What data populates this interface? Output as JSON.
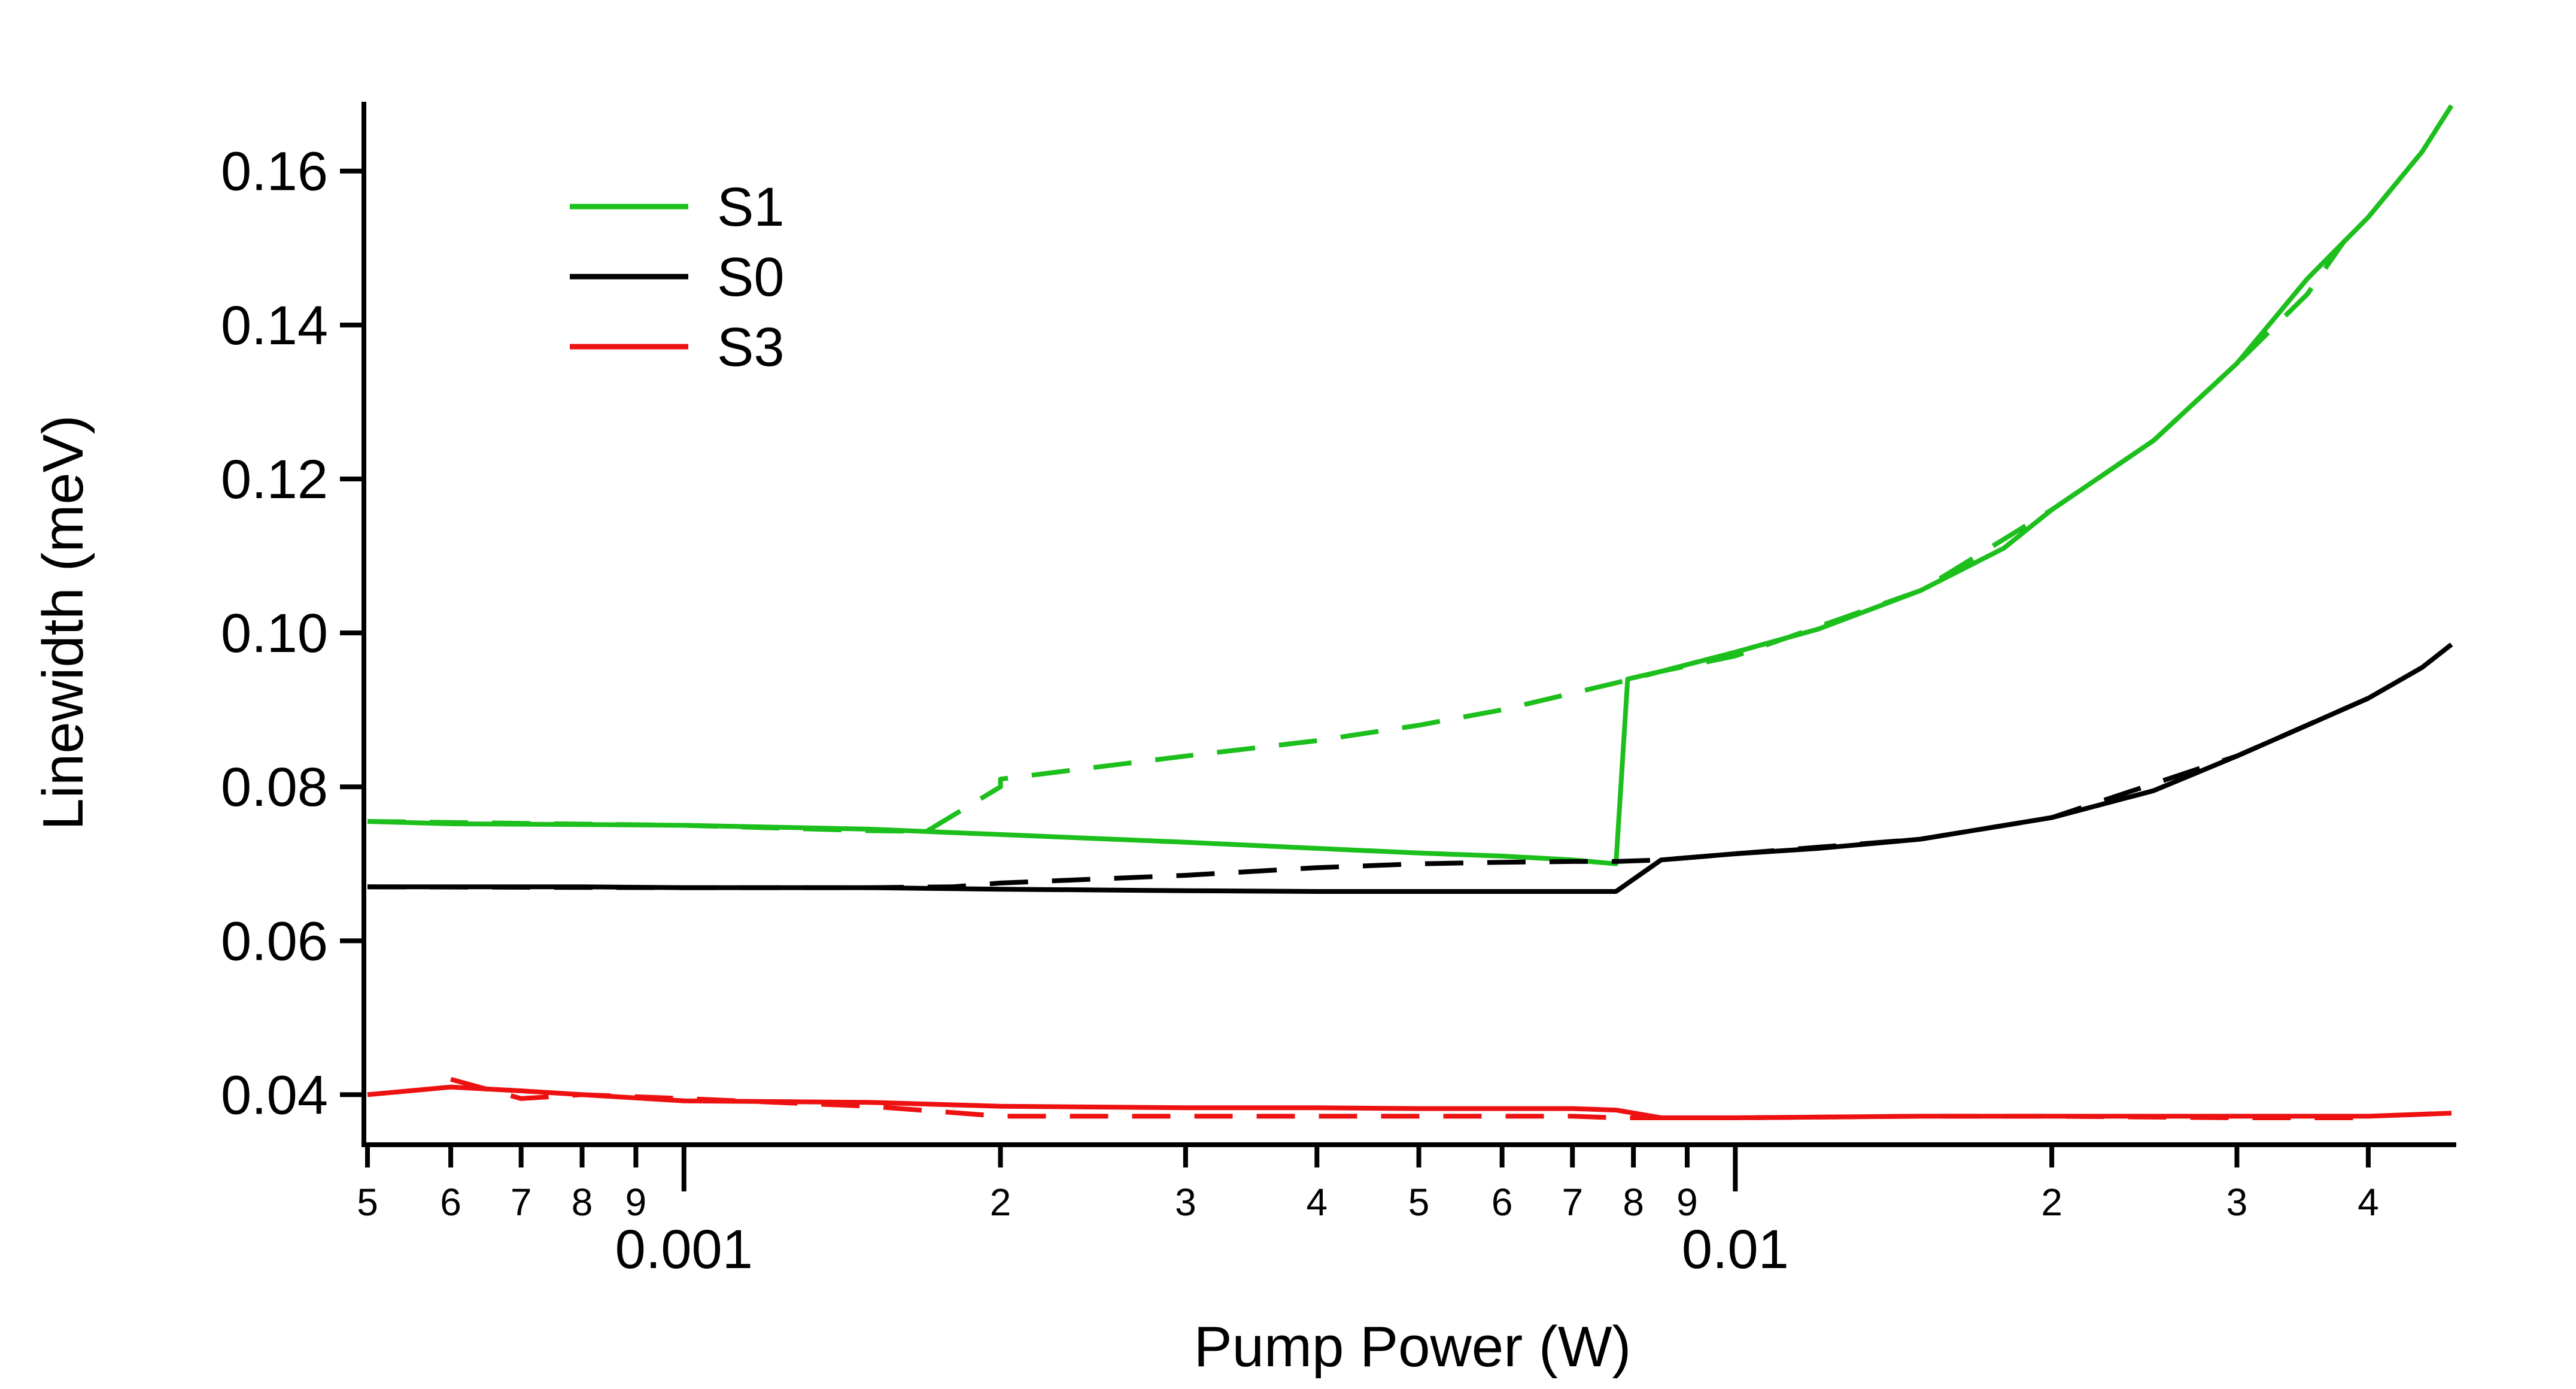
{
  "chart_data": {
    "type": "line",
    "title": "",
    "xlabel": "Pump Power (W)",
    "ylabel": "Linewidth (meV)",
    "xscale": "log",
    "xlim": [
      0.0005,
      0.048
    ],
    "ylim": [
      0.0335,
      0.169
    ],
    "y_ticks": [
      {
        "value": 0.04,
        "label": "0.04"
      },
      {
        "value": 0.06,
        "label": "0.06"
      },
      {
        "value": 0.08,
        "label": "0.08"
      },
      {
        "value": 0.1,
        "label": "0.10"
      },
      {
        "value": 0.12,
        "label": "0.12"
      },
      {
        "value": 0.14,
        "label": "0.14"
      },
      {
        "value": 0.16,
        "label": "0.16"
      }
    ],
    "x_major_ticks": [
      {
        "value": 0.001,
        "label": "0.001"
      },
      {
        "value": 0.01,
        "label": "0.01"
      }
    ],
    "x_minor_ticks": [
      {
        "value": 0.0005,
        "label": "5"
      },
      {
        "value": 0.0006,
        "label": "6"
      },
      {
        "value": 0.0007,
        "label": "7"
      },
      {
        "value": 0.0008,
        "label": "8"
      },
      {
        "value": 0.0009,
        "label": "9"
      },
      {
        "value": 0.002,
        "label": "2"
      },
      {
        "value": 0.003,
        "label": "3"
      },
      {
        "value": 0.004,
        "label": "4"
      },
      {
        "value": 0.005,
        "label": "5"
      },
      {
        "value": 0.006,
        "label": "6"
      },
      {
        "value": 0.007,
        "label": "7"
      },
      {
        "value": 0.008,
        "label": "8"
      },
      {
        "value": 0.009,
        "label": "9"
      },
      {
        "value": 0.02,
        "label": "2"
      },
      {
        "value": 0.03,
        "label": "3"
      },
      {
        "value": 0.04,
        "label": "4"
      }
    ],
    "legend": {
      "position": "top-left",
      "entries": [
        {
          "name": "S1",
          "color": "#1cbf1c"
        },
        {
          "name": "S0",
          "color": "#000000"
        },
        {
          "name": "S3",
          "color": "#ee1111"
        }
      ]
    },
    "series": [
      {
        "name": "S1",
        "style": "solid",
        "color": "#1cbf1c",
        "x": [
          0.0005,
          0.0006,
          0.0008,
          0.001,
          0.0015,
          0.002,
          0.003,
          0.004,
          0.005,
          0.006,
          0.007,
          0.0077,
          0.0079,
          0.0085,
          0.01,
          0.012,
          0.015,
          0.018,
          0.02,
          0.025,
          0.03,
          0.035,
          0.04,
          0.045,
          0.048
        ],
        "y": [
          0.0755,
          0.0752,
          0.0751,
          0.075,
          0.0745,
          0.0738,
          0.0728,
          0.072,
          0.0714,
          0.071,
          0.0705,
          0.07,
          0.094,
          0.095,
          0.0975,
          0.1005,
          0.1055,
          0.111,
          0.116,
          0.125,
          0.135,
          0.146,
          0.154,
          0.1625,
          0.1685
        ]
      },
      {
        "name": "S1 (dashed)",
        "style": "dashed",
        "color": "#1cbf1c",
        "x": [
          0.0005,
          0.001,
          0.0015,
          0.0017,
          0.002,
          0.002,
          0.003,
          0.004,
          0.005,
          0.006,
          0.0077,
          0.0085,
          0.01,
          0.015,
          0.02,
          0.025,
          0.03,
          0.035,
          0.038
        ],
        "y": [
          0.0755,
          0.075,
          0.0743,
          0.0742,
          0.08,
          0.081,
          0.084,
          0.086,
          0.088,
          0.09,
          0.0935,
          0.095,
          0.097,
          0.1055,
          0.116,
          0.125,
          0.135,
          0.144,
          0.151
        ]
      },
      {
        "name": "S0",
        "style": "solid",
        "color": "#000000",
        "x": [
          0.0005,
          0.0008,
          0.001,
          0.0015,
          0.002,
          0.003,
          0.004,
          0.005,
          0.006,
          0.007,
          0.0077,
          0.0085,
          0.01,
          0.012,
          0.015,
          0.02,
          0.025,
          0.03,
          0.035,
          0.04,
          0.045,
          0.048
        ],
        "y": [
          0.067,
          0.067,
          0.0669,
          0.0669,
          0.0667,
          0.0665,
          0.0664,
          0.0664,
          0.0664,
          0.0664,
          0.0664,
          0.0705,
          0.0713,
          0.072,
          0.0732,
          0.076,
          0.0795,
          0.084,
          0.088,
          0.0915,
          0.0955,
          0.0985
        ]
      },
      {
        "name": "S0 (dashed)",
        "style": "dashed",
        "color": "#000000",
        "x": [
          0.0005,
          0.001,
          0.0015,
          0.0018,
          0.002,
          0.003,
          0.004,
          0.005,
          0.006,
          0.007,
          0.0077,
          0.0085,
          0.01,
          0.015,
          0.02,
          0.03,
          0.04
        ],
        "y": [
          0.067,
          0.0669,
          0.0669,
          0.067,
          0.0675,
          0.0685,
          0.0695,
          0.07,
          0.0702,
          0.0703,
          0.0703,
          0.0705,
          0.0713,
          0.0732,
          0.076,
          0.084,
          0.0915
        ]
      },
      {
        "name": "S3",
        "style": "solid",
        "color": "#ee1111",
        "x": [
          0.0005,
          0.0006,
          0.0007,
          0.0008,
          0.001,
          0.0015,
          0.002,
          0.003,
          0.004,
          0.005,
          0.006,
          0.007,
          0.0077,
          0.0085,
          0.01,
          0.015,
          0.02,
          0.03,
          0.04,
          0.048
        ],
        "y": [
          0.04,
          0.041,
          0.0405,
          0.04,
          0.0392,
          0.039,
          0.0385,
          0.0383,
          0.0383,
          0.0382,
          0.0382,
          0.0382,
          0.038,
          0.037,
          0.037,
          0.0372,
          0.0372,
          0.0372,
          0.0372,
          0.0376
        ]
      },
      {
        "name": "S3 (dashed)",
        "style": "dashed",
        "color": "#ee1111",
        "x": [
          0.0006,
          0.0007,
          0.0008,
          0.001,
          0.0015,
          0.002,
          0.003,
          0.004,
          0.005,
          0.006,
          0.007,
          0.0077,
          0.0085,
          0.01,
          0.015,
          0.02,
          0.03,
          0.04
        ],
        "y": [
          0.042,
          0.0395,
          0.04,
          0.0395,
          0.0385,
          0.0372,
          0.0372,
          0.0372,
          0.0372,
          0.0372,
          0.0372,
          0.037,
          0.037,
          0.037,
          0.0372,
          0.0372,
          0.037,
          0.037
        ]
      }
    ]
  }
}
